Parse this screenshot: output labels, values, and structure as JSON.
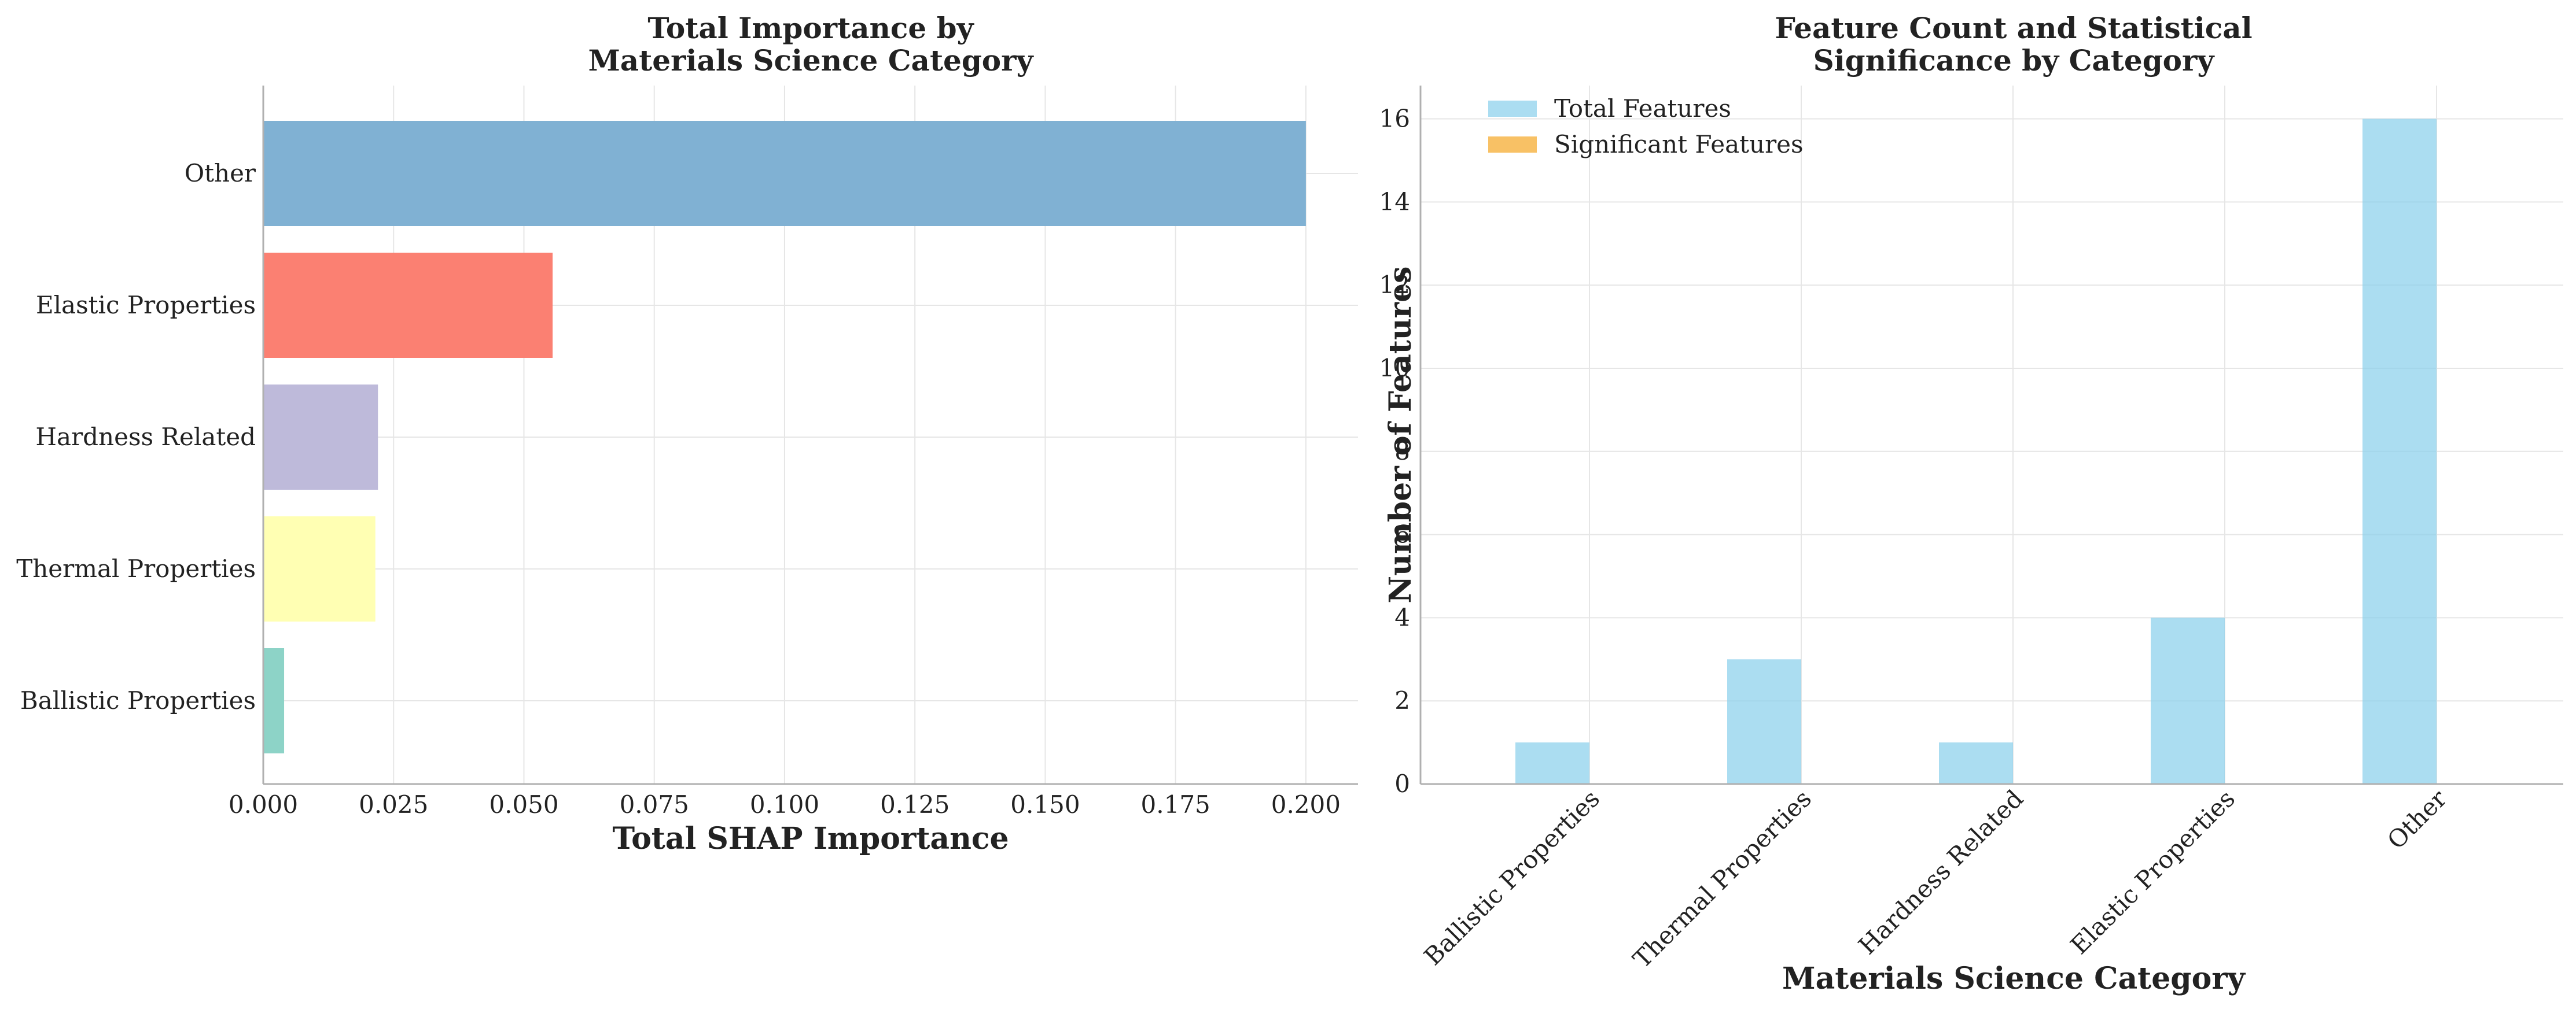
{
  "chart_data": [
    {
      "type": "bar",
      "orientation": "horizontal",
      "title": "Total Importance by\nMaterials Science Category",
      "xlabel": "Total SHAP Importance",
      "ylabel": "",
      "categories": [
        "Ballistic Properties",
        "Thermal Properties",
        "Hardness Related",
        "Elastic Properties",
        "Other"
      ],
      "values": [
        0.004,
        0.0215,
        0.022,
        0.0555,
        0.2
      ],
      "colors": [
        "#8dd3c7",
        "#ffffb3",
        "#bebada",
        "#fb8072",
        "#80b1d3"
      ],
      "xlim": [
        0,
        0.21
      ],
      "xticks": [
        "0.000",
        "0.025",
        "0.050",
        "0.075",
        "0.100",
        "0.125",
        "0.150",
        "0.175",
        "0.200"
      ],
      "xtick_values": [
        0,
        0.025,
        0.05,
        0.075,
        0.1,
        0.125,
        0.15,
        0.175,
        0.2
      ],
      "grid": true
    },
    {
      "type": "bar",
      "title": "Feature Count and Statistical\nSignificance by Category",
      "xlabel": "Materials Science Category",
      "ylabel": "Number of Features",
      "categories": [
        "Ballistic Properties",
        "Thermal Properties",
        "Hardness Related",
        "Elastic Properties",
        "Other"
      ],
      "series": [
        {
          "name": "Total Features",
          "values": [
            1,
            3,
            1,
            4,
            16
          ],
          "color": "#87ceeb"
        },
        {
          "name": "Significant Features",
          "values": [
            0,
            0,
            0,
            0,
            0
          ],
          "color": "#f5a623"
        }
      ],
      "ylim": [
        0,
        16.8
      ],
      "yticks": [
        "0",
        "2",
        "4",
        "6",
        "8",
        "10",
        "12",
        "14",
        "16"
      ],
      "ytick_values": [
        0,
        2,
        4,
        6,
        8,
        10,
        12,
        14,
        16
      ],
      "legend_position": "top-left",
      "grid": true
    }
  ]
}
